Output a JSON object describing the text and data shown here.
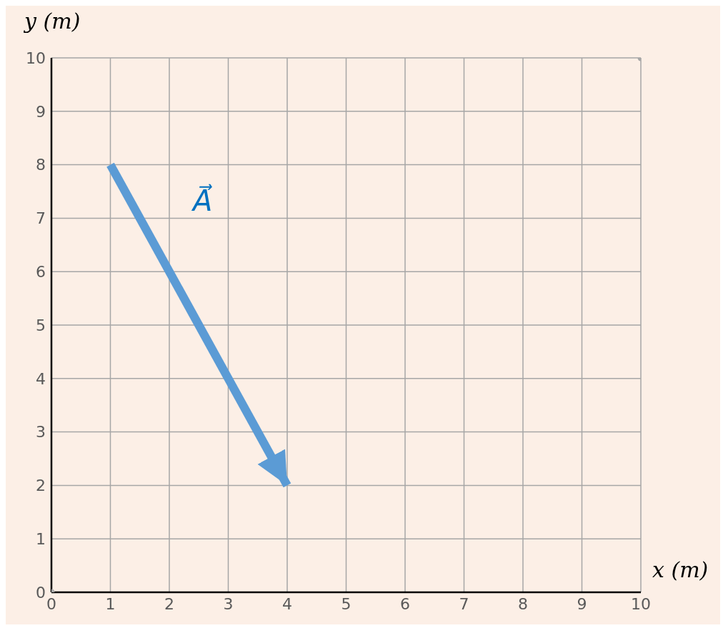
{
  "chart_data": {
    "type": "line",
    "xlabel": "x (m)",
    "ylabel": "y (m)",
    "xlim": [
      0,
      10
    ],
    "ylim": [
      0,
      10
    ],
    "xticks": [
      0,
      1,
      2,
      3,
      4,
      5,
      6,
      7,
      8,
      9,
      10
    ],
    "yticks": [
      0,
      1,
      2,
      3,
      4,
      5,
      6,
      7,
      8,
      9,
      10
    ],
    "grid": true,
    "series": [
      {
        "color": "#5b9bd5",
        "x": [
          1,
          4
        ],
        "values": [
          8,
          2
        ],
        "marker": "none"
      },
      {
        "type": "scatter",
        "color": "#a6a6a6",
        "x": [
          0,
          10
        ],
        "values": [
          0,
          10
        ],
        "marker": "circle"
      }
    ],
    "annotations": [
      "A⃗"
    ]
  }
}
